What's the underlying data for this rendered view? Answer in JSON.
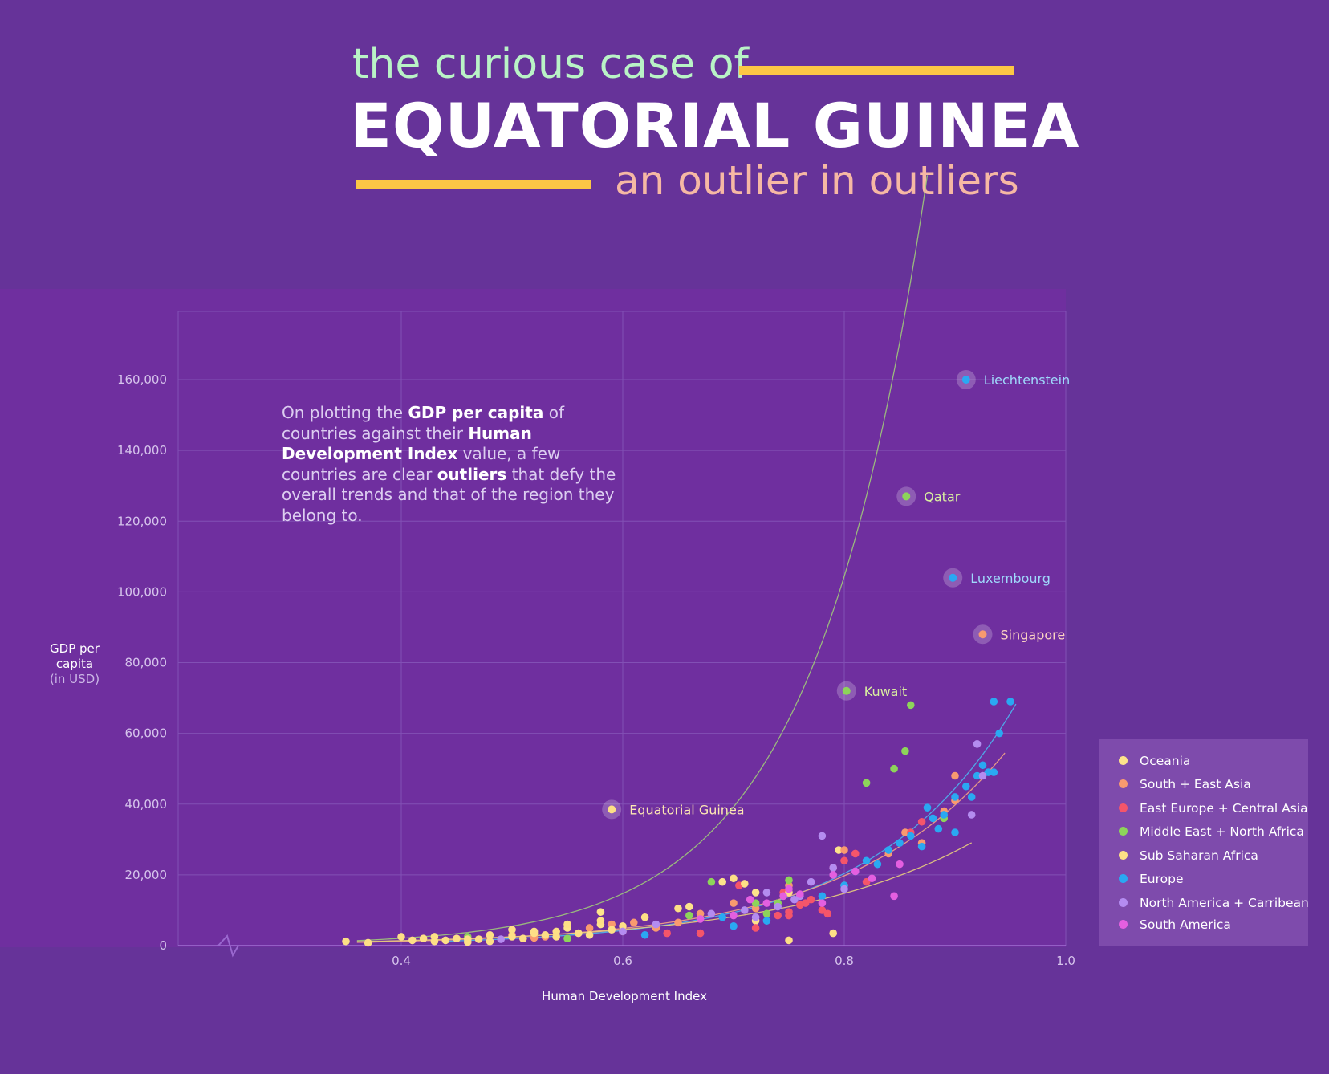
{
  "header": {
    "line1": "the curious case of",
    "line2": "EQUATORIAL GUINEA",
    "line3": "an outlier in outliers"
  },
  "note": {
    "p1": "On plotting the ",
    "b1": "GDP per capita",
    "p2": " of countries against their ",
    "b2": "Human Development Index",
    "p3": " value, a few countries are clear ",
    "b3": "outliers",
    "p4": " that defy the overall trends and that of the region they belong to."
  },
  "axes": {
    "ylabel_1": "GDP per",
    "ylabel_2": "capita",
    "ylabel_unit": "(in USD)",
    "xlabel": "Human Development Index"
  },
  "legend": {
    "items": [
      {
        "label": "Oceania",
        "color": "#fde38b"
      },
      {
        "label": "South + East Asia",
        "color": "#f99a6f"
      },
      {
        "label": "East Europe + Central Asia",
        "color": "#f5556a"
      },
      {
        "label": "Middle East + North Africa",
        "color": "#8dd45a"
      },
      {
        "label": "Sub Saharan Africa",
        "color": "#fddf86"
      },
      {
        "label": "Europe",
        "color": "#2aa8f2"
      },
      {
        "label": "North America + Carribean",
        "color": "#b48cf0"
      },
      {
        "label": "South America",
        "color": "#e45fe0"
      }
    ]
  },
  "colors": {
    "background": "#663399",
    "plot_background": "#6f2f9f",
    "accent_rule": "#fcc745",
    "grid": "#8250b5"
  },
  "chart_data": {
    "type": "scatter",
    "title": "",
    "xlabel": "Human Development Index",
    "ylabel": "GDP per capita (in USD)",
    "xlim": [
      0.2,
      1.0
    ],
    "ylim": [
      0,
      180000
    ],
    "x_ticks": [
      0.4,
      0.6,
      0.8,
      1.0
    ],
    "x_tick_labels": [
      "0.4",
      "0.6",
      "0.8",
      "1.0"
    ],
    "y_ticks": [
      0,
      20000,
      40000,
      60000,
      80000,
      100000,
      120000,
      140000,
      160000
    ],
    "y_tick_labels": [
      "0",
      "20,000",
      "40,000",
      "60,000",
      "80,000",
      "100,000",
      "120,000",
      "140,000",
      "160,000"
    ],
    "grid": true,
    "legend_position": "right",
    "outliers": [
      {
        "name": "Liechtenstein",
        "x": 0.91,
        "y": 160000,
        "color": "#2aa8f2",
        "label_color": "#9fd8fb"
      },
      {
        "name": "Qatar",
        "x": 0.856,
        "y": 127000,
        "color": "#8dd45a",
        "label_color": "#d9f0a0"
      },
      {
        "name": "Luxembourg",
        "x": 0.898,
        "y": 104000,
        "color": "#2aa8f2",
        "label_color": "#9fd8fb"
      },
      {
        "name": "Singapore",
        "x": 0.925,
        "y": 88000,
        "color": "#f99a6f",
        "label_color": "#fbd3c2"
      },
      {
        "name": "Kuwait",
        "x": 0.802,
        "y": 72000,
        "color": "#8dd45a",
        "label_color": "#d9f0a0"
      },
      {
        "name": "Equatorial Guinea",
        "x": 0.59,
        "y": 38500,
        "color": "#fddf86",
        "label_color": "#fde7b3"
      }
    ],
    "series": [
      {
        "name": "Oceania",
        "color": "#fde38b",
        "points": [
          [
            0.58,
            9500
          ],
          [
            0.55,
            5000
          ],
          [
            0.72,
            15000
          ],
          [
            0.795,
            27000
          ],
          [
            0.72,
            7000
          ],
          [
            0.66,
            11000
          ],
          [
            0.69,
            18000
          ],
          [
            0.58,
            6000
          ]
        ]
      },
      {
        "name": "South + East Asia",
        "color": "#f99a6f",
        "points": [
          [
            0.52,
            2200
          ],
          [
            0.57,
            5000
          ],
          [
            0.59,
            6000
          ],
          [
            0.6,
            4000
          ],
          [
            0.61,
            6500
          ],
          [
            0.65,
            6500
          ],
          [
            0.7,
            12000
          ],
          [
            0.75,
            17000
          ],
          [
            0.8,
            27000
          ],
          [
            0.84,
            26000
          ],
          [
            0.855,
            32000
          ],
          [
            0.87,
            29000
          ],
          [
            0.9,
            48000
          ],
          [
            0.9,
            41000
          ],
          [
            0.89,
            38000
          ],
          [
            0.5,
            3000
          ],
          [
            0.53,
            2500
          ],
          [
            0.63,
            5000
          ],
          [
            0.67,
            9000
          ],
          [
            0.72,
            10500
          ]
        ]
      },
      {
        "name": "East Europe + Central Asia",
        "color": "#f5556a",
        "points": [
          [
            0.64,
            3500
          ],
          [
            0.67,
            3500
          ],
          [
            0.72,
            5000
          ],
          [
            0.74,
            8500
          ],
          [
            0.75,
            9500
          ],
          [
            0.76,
            11500
          ],
          [
            0.78,
            10000
          ],
          [
            0.79,
            22000
          ],
          [
            0.8,
            24000
          ],
          [
            0.81,
            26000
          ],
          [
            0.82,
            18000
          ],
          [
            0.86,
            32000
          ],
          [
            0.87,
            35000
          ],
          [
            0.745,
            15000
          ],
          [
            0.77,
            13000
          ],
          [
            0.705,
            17000
          ],
          [
            0.785,
            9000
          ],
          [
            0.75,
            8500
          ],
          [
            0.765,
            12000
          ]
        ]
      },
      {
        "name": "Middle East + North Africa",
        "color": "#8dd45a",
        "points": [
          [
            0.68,
            18000
          ],
          [
            0.75,
            18500
          ],
          [
            0.74,
            12000
          ],
          [
            0.73,
            9000
          ],
          [
            0.82,
            46000
          ],
          [
            0.845,
            50000
          ],
          [
            0.855,
            55000
          ],
          [
            0.86,
            68000
          ],
          [
            0.89,
            36000
          ],
          [
            0.8,
            17000
          ],
          [
            0.72,
            12000
          ],
          [
            0.66,
            8500
          ],
          [
            0.55,
            2000
          ],
          [
            0.46,
            2500
          ]
        ]
      },
      {
        "name": "Sub Saharan Africa",
        "color": "#fddf86",
        "points": [
          [
            0.35,
            1200
          ],
          [
            0.37,
            800
          ],
          [
            0.4,
            2500
          ],
          [
            0.41,
            1500
          ],
          [
            0.42,
            2000
          ],
          [
            0.43,
            2500
          ],
          [
            0.43,
            1200
          ],
          [
            0.44,
            1500
          ],
          [
            0.45,
            2000
          ],
          [
            0.46,
            1000
          ],
          [
            0.47,
            1800
          ],
          [
            0.48,
            3000
          ],
          [
            0.48,
            1200
          ],
          [
            0.5,
            4500
          ],
          [
            0.51,
            2000
          ],
          [
            0.52,
            4000
          ],
          [
            0.53,
            3000
          ],
          [
            0.54,
            2500
          ],
          [
            0.55,
            6000
          ],
          [
            0.56,
            3500
          ],
          [
            0.58,
            7000
          ],
          [
            0.59,
            4500
          ],
          [
            0.6,
            5500
          ],
          [
            0.62,
            8000
          ],
          [
            0.65,
            10500
          ],
          [
            0.7,
            19000
          ],
          [
            0.71,
            17500
          ],
          [
            0.75,
            15000
          ],
          [
            0.75,
            1500
          ],
          [
            0.79,
            3500
          ],
          [
            0.52,
            3500
          ],
          [
            0.54,
            4000
          ],
          [
            0.57,
            3000
          ],
          [
            0.5,
            2500
          ],
          [
            0.46,
            1800
          ]
        ]
      },
      {
        "name": "Europe",
        "color": "#2aa8f2",
        "points": [
          [
            0.62,
            3000
          ],
          [
            0.7,
            5500
          ],
          [
            0.78,
            14000
          ],
          [
            0.8,
            17000
          ],
          [
            0.81,
            21000
          ],
          [
            0.82,
            24000
          ],
          [
            0.83,
            23000
          ],
          [
            0.84,
            27000
          ],
          [
            0.85,
            29000
          ],
          [
            0.86,
            31000
          ],
          [
            0.87,
            28000
          ],
          [
            0.875,
            39000
          ],
          [
            0.88,
            36000
          ],
          [
            0.885,
            33000
          ],
          [
            0.89,
            37000
          ],
          [
            0.9,
            32000
          ],
          [
            0.9,
            42000
          ],
          [
            0.91,
            45000
          ],
          [
            0.915,
            42000
          ],
          [
            0.92,
            48000
          ],
          [
            0.925,
            51000
          ],
          [
            0.93,
            49000
          ],
          [
            0.935,
            49000
          ],
          [
            0.94,
            60000
          ],
          [
            0.935,
            69000
          ],
          [
            0.95,
            69000
          ],
          [
            0.73,
            7000
          ],
          [
            0.69,
            8000
          ]
        ]
      },
      {
        "name": "North America + Carribean",
        "color": "#b48cf0",
        "points": [
          [
            0.49,
            1800
          ],
          [
            0.6,
            4000
          ],
          [
            0.63,
            6000
          ],
          [
            0.68,
            9000
          ],
          [
            0.72,
            8000
          ],
          [
            0.73,
            15000
          ],
          [
            0.74,
            11000
          ],
          [
            0.76,
            14000
          ],
          [
            0.77,
            18000
          ],
          [
            0.78,
            31000
          ],
          [
            0.79,
            22000
          ],
          [
            0.8,
            16000
          ],
          [
            0.915,
            37000
          ],
          [
            0.92,
            57000
          ],
          [
            0.925,
            48000
          ],
          [
            0.755,
            13000
          ],
          [
            0.71,
            10000
          ]
        ]
      },
      {
        "name": "South America",
        "color": "#e45fe0",
        "points": [
          [
            0.67,
            7500
          ],
          [
            0.7,
            8500
          ],
          [
            0.715,
            13000
          ],
          [
            0.73,
            12000
          ],
          [
            0.745,
            14000
          ],
          [
            0.75,
            16000
          ],
          [
            0.76,
            14500
          ],
          [
            0.79,
            20000
          ],
          [
            0.81,
            21000
          ],
          [
            0.825,
            19000
          ],
          [
            0.845,
            14000
          ],
          [
            0.85,
            23000
          ],
          [
            0.78,
            12000
          ]
        ]
      }
    ],
    "trend_lines": [
      {
        "name": "Middle East + North Africa",
        "color": "#9fc97a"
      },
      {
        "name": "Europe",
        "color": "#4db5f0"
      },
      {
        "name": "South + East Asia",
        "color": "#f3a585"
      },
      {
        "name": "Sub Saharan Africa",
        "color": "#e9cf7c"
      }
    ]
  }
}
